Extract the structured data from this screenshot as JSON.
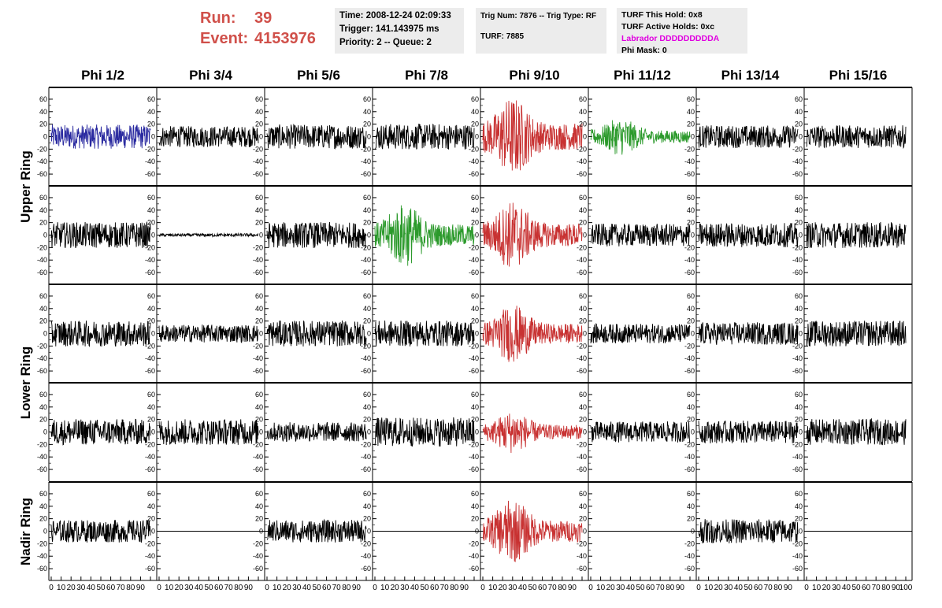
{
  "header": {
    "run_label": "Run:",
    "run_value": "39",
    "event_label": "Event:",
    "event_value": "4153976"
  },
  "info_time": {
    "time": "Time: 2008-12-24 02:09:33",
    "trigger": "Trigger: 141.143975 ms",
    "priority": "Priority: 2 -- Queue: 2"
  },
  "info_trig": {
    "trig": "Trig Num: 7876 -- Trig Type: RF",
    "turf": "TURF: 7885"
  },
  "info_turf": {
    "hold": "TURF This Hold: 0x8",
    "active": "TURF Active Holds: 0xc",
    "labrador": "Labrador DDDDDDDDDA",
    "phi_mask": "Phi Mask: 0"
  },
  "columns": [
    "Phi 1/2",
    "Phi 3/4",
    "Phi 5/6",
    "Phi 7/8",
    "Phi 9/10",
    "Phi 11/12",
    "Phi 13/14",
    "Phi 15/16"
  ],
  "rings": [
    "Upper Ring",
    "Lower Ring",
    "Nadir Ring"
  ],
  "colors": {
    "run_text": "#d0504a",
    "labrador": "#e000e0",
    "blue": "#2a2aa0",
    "red": "#c83232",
    "green": "#2c9a2c",
    "black": "#000000"
  },
  "y_ticks": [
    "60",
    "40",
    "20",
    "0",
    "-20",
    "-40",
    "-60"
  ],
  "x_ticks": [
    "0",
    "10",
    "20",
    "30",
    "40",
    "50",
    "60",
    "70",
    "80",
    "90",
    "100"
  ],
  "chart_data": {
    "type": "line",
    "xlim": [
      0,
      100
    ],
    "ylim": [
      -70,
      70
    ],
    "grid": false,
    "description_rows": [
      "upper-1",
      "upper-2",
      "lower-1",
      "lower-2",
      "nadir"
    ],
    "panels": [
      [
        {
          "color": "blue",
          "amp": 15
        },
        {
          "color": "black",
          "amp": 13
        },
        {
          "color": "black",
          "amp": 15
        },
        {
          "color": "black",
          "amp": 16
        },
        {
          "color": "red",
          "amp": 30
        },
        {
          "color": "green",
          "amp": 14
        },
        {
          "color": "black",
          "amp": 14
        },
        {
          "color": "black",
          "amp": 14
        }
      ],
      [
        {
          "color": "black",
          "amp": 16
        },
        {
          "color": "black",
          "amp": 2
        },
        {
          "color": "black",
          "amp": 16
        },
        {
          "color": "green",
          "amp": 24
        },
        {
          "color": "red",
          "amp": 26
        },
        {
          "color": "black",
          "amp": 14
        },
        {
          "color": "black",
          "amp": 15
        },
        {
          "color": "black",
          "amp": 16
        }
      ],
      [
        {
          "color": "black",
          "amp": 16
        },
        {
          "color": "black",
          "amp": 11
        },
        {
          "color": "black",
          "amp": 16
        },
        {
          "color": "black",
          "amp": 16
        },
        {
          "color": "red",
          "amp": 22
        },
        {
          "color": "black",
          "amp": 12
        },
        {
          "color": "black",
          "amp": 14
        },
        {
          "color": "black",
          "amp": 16
        }
      ],
      [
        {
          "color": "black",
          "amp": 16
        },
        {
          "color": "black",
          "amp": 16
        },
        {
          "color": "black",
          "amp": 12
        },
        {
          "color": "black",
          "amp": 18
        },
        {
          "color": "red",
          "amp": 16
        },
        {
          "color": "black",
          "amp": 13
        },
        {
          "color": "black",
          "amp": 14
        },
        {
          "color": "black",
          "amp": 16
        }
      ],
      [
        {
          "color": "black",
          "amp": 14
        },
        {
          "color": "black",
          "amp": 0
        },
        {
          "color": "black",
          "amp": 14
        },
        {
          "color": "black",
          "amp": 0
        },
        {
          "color": "red",
          "amp": 24
        },
        {
          "color": "black",
          "amp": 0
        },
        {
          "color": "black",
          "amp": 15
        },
        {
          "color": "black",
          "amp": 0
        }
      ]
    ]
  }
}
